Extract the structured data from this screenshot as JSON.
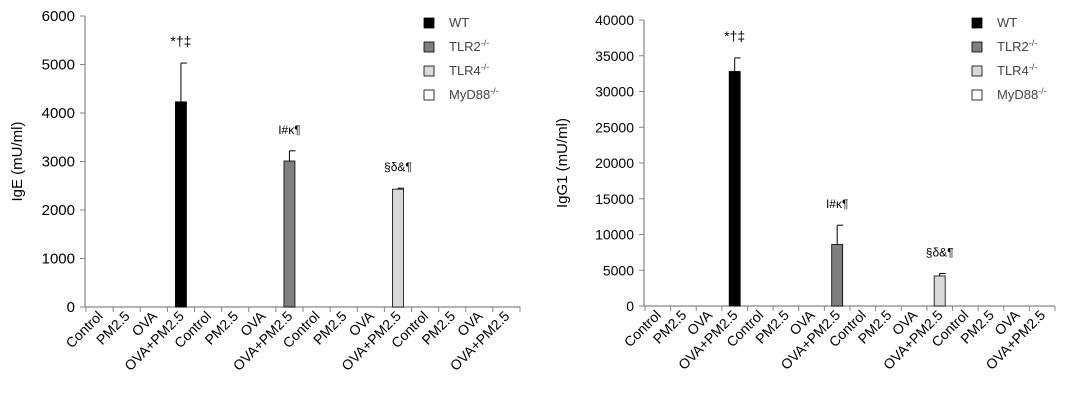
{
  "chart_data": [
    {
      "type": "bar",
      "ylabel": "IgE (mU/ml)",
      "ylim": [
        0,
        6000
      ],
      "yticks": [
        0,
        1000,
        2000,
        3000,
        4000,
        5000,
        6000
      ],
      "categories": [
        "Control",
        "PM2.5",
        "OVA",
        "OVA+PM2.5",
        "Control",
        "PM2.5",
        "OVA",
        "OVA+PM2.5",
        "Control",
        "PM2.5",
        "OVA",
        "OVA+PM2.5",
        "Control",
        "PM2.5",
        "OVA",
        "OVA+PM2.5"
      ],
      "groups": [
        {
          "name": "WT",
          "sup": "",
          "color": "#000000"
        },
        {
          "name": "TLR2",
          "sup": "-/-",
          "color": "#7f7f7f"
        },
        {
          "name": "TLR4",
          "sup": "-/-",
          "color": "#d9d9d9"
        },
        {
          "name": "MyD88",
          "sup": "-/-",
          "color": "#ffffff"
        }
      ],
      "values": [
        0,
        0,
        0,
        4230,
        0,
        0,
        0,
        3010,
        0,
        0,
        0,
        2430,
        0,
        0,
        0,
        0
      ],
      "errors": [
        0,
        0,
        0,
        800,
        0,
        0,
        0,
        210,
        0,
        0,
        0,
        20,
        0,
        0,
        0,
        0
      ],
      "annotations": [
        "",
        "",
        "",
        "*†‡",
        "",
        "",
        "",
        "I#κ¶",
        "",
        "",
        "",
        "§δ&¶",
        "",
        "",
        "",
        ""
      ],
      "legend_position": "top-right",
      "grid": false
    },
    {
      "type": "bar",
      "ylabel": "IgG1 (mU/ml)",
      "ylim": [
        0,
        40000
      ],
      "yticks": [
        0,
        5000,
        10000,
        15000,
        20000,
        25000,
        30000,
        35000,
        40000
      ],
      "categories": [
        "Control",
        "PM2.5",
        "OVA",
        "OVA+PM2.5",
        "Control",
        "PM2.5",
        "OVA",
        "OVA+PM2.5",
        "Control",
        "PM2.5",
        "OVA",
        "OVA+PM2.5",
        "Control",
        "PM2.5",
        "OVA",
        "OVA+PM2.5"
      ],
      "groups": [
        {
          "name": "WT",
          "sup": "",
          "color": "#000000"
        },
        {
          "name": "TLR2",
          "sup": "-/-",
          "color": "#7f7f7f"
        },
        {
          "name": "TLR4",
          "sup": "-/-",
          "color": "#d9d9d9"
        },
        {
          "name": "MyD88",
          "sup": "-/-",
          "color": "#ffffff"
        }
      ],
      "values": [
        0,
        0,
        0,
        32800,
        0,
        0,
        0,
        8600,
        0,
        0,
        0,
        4200,
        0,
        0,
        0,
        0
      ],
      "errors": [
        0,
        0,
        0,
        1900,
        0,
        0,
        0,
        2700,
        0,
        0,
        0,
        350,
        0,
        0,
        0,
        0
      ],
      "annotations": [
        "",
        "",
        "",
        "*†‡",
        "",
        "",
        "",
        "I#κ¶",
        "",
        "",
        "",
        "§δ&¶",
        "",
        "",
        "",
        ""
      ],
      "legend_position": "top-right",
      "grid": false
    }
  ]
}
